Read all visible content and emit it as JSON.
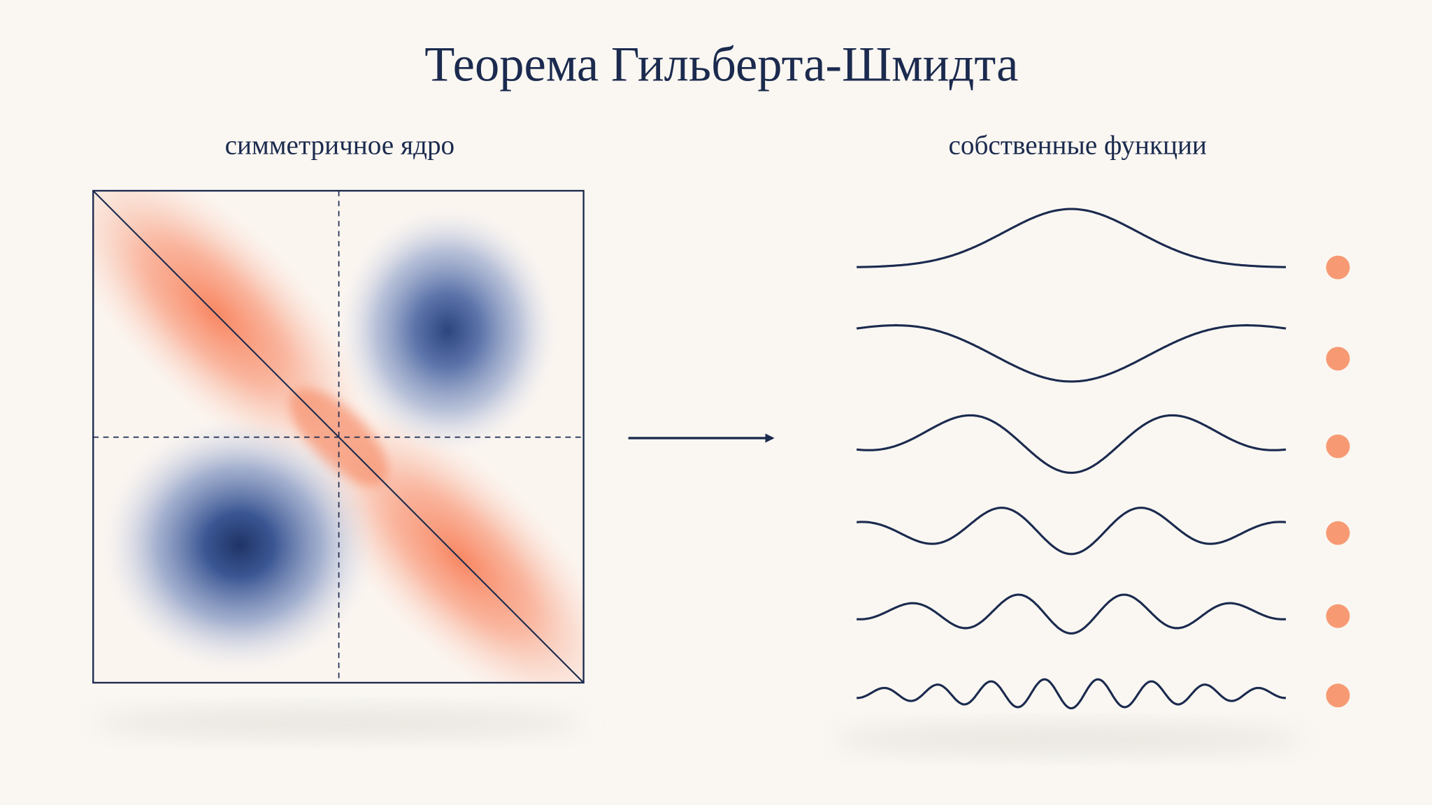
{
  "title": "Теорема Гильберта-Шмидта",
  "left_label": "симметричное ядро",
  "right_label": "собственные функции"
}
